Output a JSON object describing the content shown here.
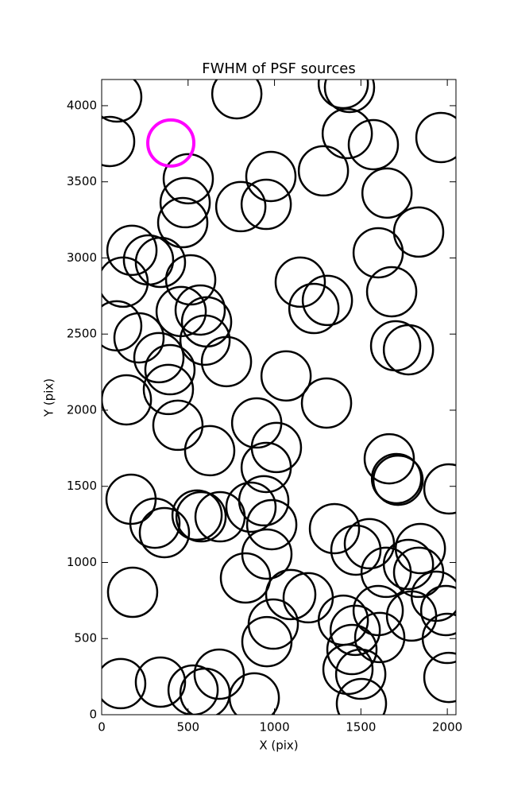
{
  "chart_data": {
    "type": "scatter",
    "title": "FWHM of PSF sources",
    "x_label": "X (pix)",
    "y_label": "Y (pix)",
    "xlim": [
      0,
      2050
    ],
    "ylim": [
      0,
      4172
    ],
    "xticks": [
      0,
      500,
      1000,
      1500,
      2000
    ],
    "yticks": [
      0,
      500,
      1000,
      1500,
      2000,
      2500,
      3000,
      3500,
      4000
    ],
    "series": [
      {
        "color": "#000000",
        "x": [
          87,
          46,
          782,
          1398,
          1434,
          1421,
          1572,
          1963,
          501,
          979,
          1283,
          483,
          469,
          805,
          952,
          1651,
          1834,
          175,
          271,
          340,
          515,
          1600,
          124,
          1149,
          1306,
          1228,
          1678,
          87,
          460,
          570,
          607,
          216,
          598,
          331,
          395,
          722,
          1701,
          1775,
          386,
          1067,
          143,
          1301,
          441,
          897,
          1011,
          625,
          952,
          1664,
          1715,
          1706,
          2009,
          170,
          864,
          938,
          308,
          363,
          575,
          552,
          685,
          984,
          1347,
          1549,
          1471,
          956,
          1844,
          1775,
          1646,
          1834,
          832,
          179,
          1094,
          1195,
          1936,
          1991,
          1600,
          1398,
          1467,
          1793,
          993,
          956,
          1609,
          1448,
          2000,
          1425,
          1499,
          2009,
          110,
          340,
          529,
          598,
          680,
          883,
          1503
        ],
        "y": [
          4057,
          3765,
          4078,
          4146,
          4120,
          3817,
          3744,
          3791,
          3520,
          3535,
          3572,
          3363,
          3232,
          3337,
          3352,
          3426,
          3170,
          3050,
          2987,
          2971,
          2856,
          3034,
          2841,
          2841,
          2721,
          2668,
          2778,
          2554,
          2648,
          2658,
          2580,
          2475,
          2460,
          2345,
          2266,
          2319,
          2423,
          2397,
          2136,
          2225,
          2068,
          2047,
          1901,
          1916,
          1755,
          1734,
          1624,
          1681,
          1540,
          1551,
          1483,
          1415,
          1363,
          1405,
          1258,
          1196,
          1300,
          1311,
          1300,
          1248,
          1222,
          1123,
          1081,
          1055,
          1091,
          987,
          935,
          935,
          898,
          804,
          789,
          768,
          778,
          684,
          684,
          621,
          554,
          648,
          595,
          480,
          507,
          428,
          501,
          298,
          266,
          245,
          204,
          214,
          162,
          141,
          266,
          110,
          73
        ]
      },
      {
        "color": "#ff00ff",
        "x": [
          400
        ],
        "y": [
          3755
        ]
      }
    ]
  }
}
